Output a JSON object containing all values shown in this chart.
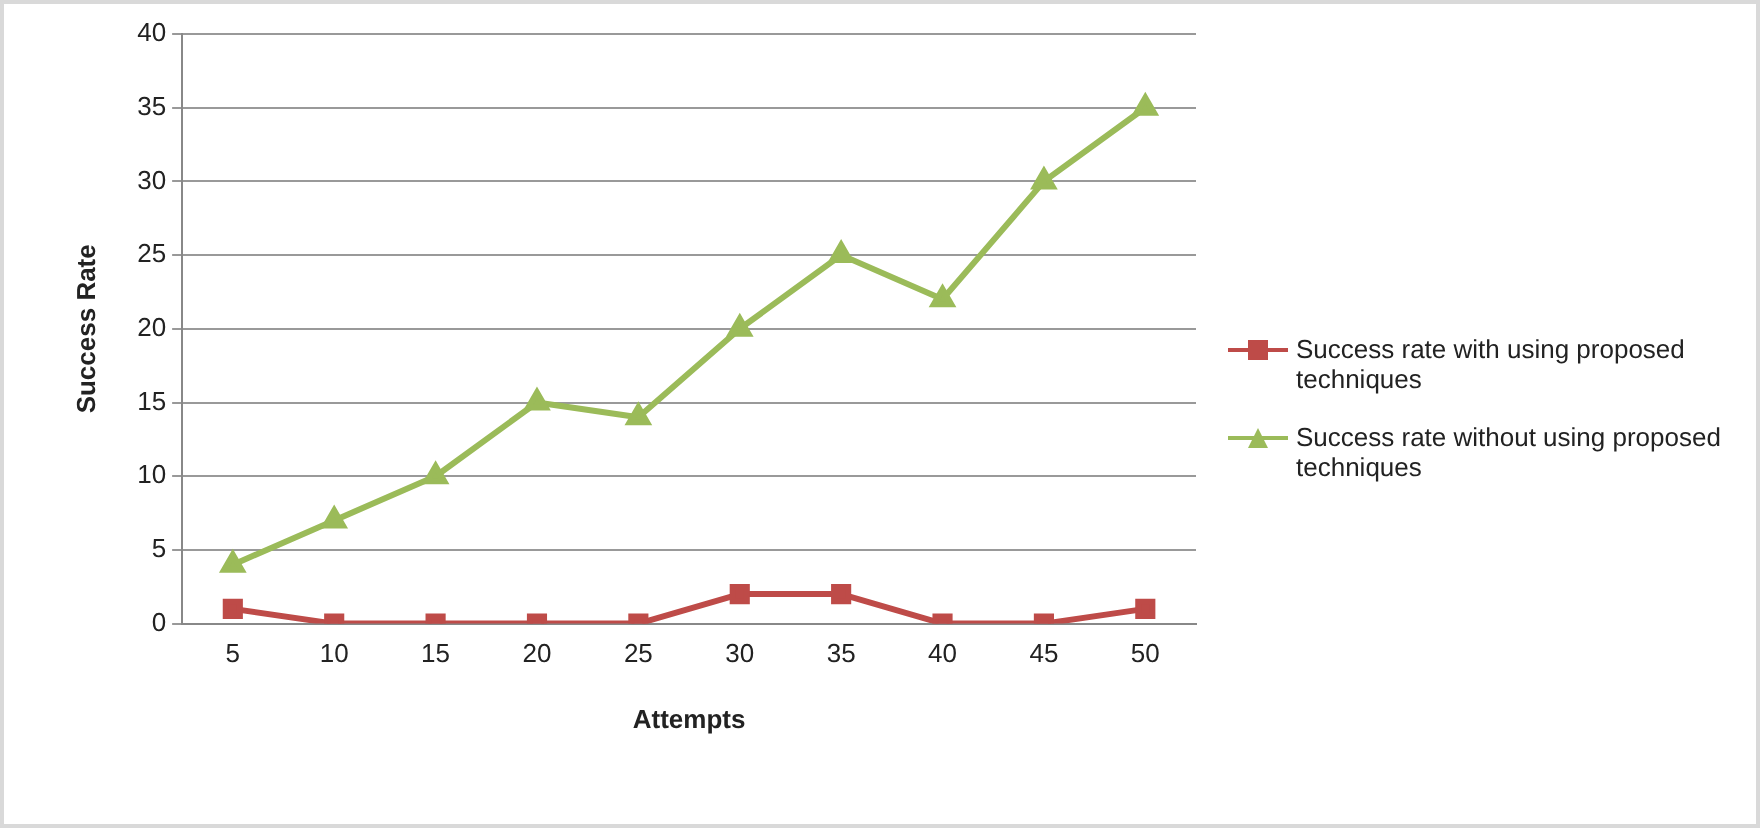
{
  "chart_data": {
    "type": "line",
    "xlabel": "Attempts",
    "ylabel": "Success Rate",
    "categories": [
      "5",
      "10",
      "15",
      "20",
      "25",
      "30",
      "35",
      "40",
      "45",
      "50"
    ],
    "series": [
      {
        "name": "Success rate with using proposed techniques",
        "color": "#be4b48",
        "marker": "square",
        "values": [
          1,
          0,
          0,
          0,
          0,
          2,
          2,
          0,
          0,
          1
        ]
      },
      {
        "name": "Success rate without using proposed techniques",
        "color": "#9bbb59",
        "marker": "triangle",
        "values": [
          4,
          7,
          10,
          15,
          14,
          20,
          25,
          22,
          30,
          35
        ]
      }
    ],
    "ylim": [
      0,
      40
    ],
    "yticks": [
      0,
      5,
      10,
      15,
      20,
      25,
      30,
      35,
      40
    ],
    "grid": "y",
    "legend": "right"
  }
}
